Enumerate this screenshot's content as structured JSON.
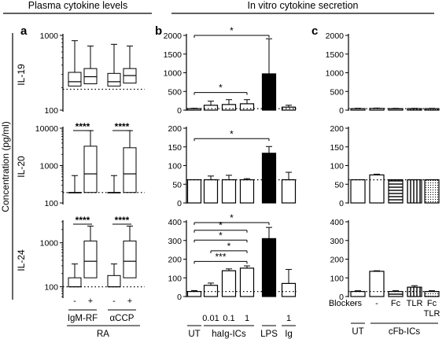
{
  "header": {
    "left_title": "Plasma cytokine levels",
    "right_title": "In vitro cytokine secretion"
  },
  "panel_letters": [
    "a",
    "b",
    "c"
  ],
  "y_axis_label": "Concentration (pg/ml)",
  "row_labels": [
    "IL-19",
    "IL-20",
    "IL-24"
  ],
  "colors": {
    "black": "#000000",
    "white": "#ffffff",
    "hatch": "#000000"
  },
  "chart_data": [
    {
      "panel": "a",
      "type": "box",
      "scale": "log",
      "groups": [
        {
          "name": "IgM-RF",
          "categories": [
            "-",
            "+"
          ]
        },
        {
          "name": "αCCP",
          "categories": [
            "-",
            "+"
          ]
        }
      ],
      "group_label": "RA",
      "rows": [
        {
          "row": "IL-19",
          "y_ticks": [
            100,
            1000
          ],
          "y_tick_labels": [
            "100",
            "1000"
          ],
          "ylim": [
            100,
            1000
          ],
          "reference_line": 190,
          "boxes": [
            {
              "category": "-",
              "group": "IgM-RF",
              "fill": "white",
              "min": 190,
              "q1": 210,
              "median": 240,
              "q3": 320,
              "max": 850
            },
            {
              "category": "+",
              "group": "IgM-RF",
              "fill": "hatched",
              "min": 190,
              "q1": 225,
              "median": 280,
              "q3": 360,
              "max": 720
            },
            {
              "category": "-",
              "group": "αCCP",
              "fill": "white",
              "min": 190,
              "q1": 210,
              "median": 240,
              "q3": 310,
              "max": 760
            },
            {
              "category": "+",
              "group": "αCCP",
              "fill": "hatched",
              "min": 190,
              "q1": 230,
              "median": 290,
              "q3": 360,
              "max": 720
            }
          ],
          "significance": []
        },
        {
          "row": "IL-20",
          "y_ticks": [
            100,
            1000,
            10000
          ],
          "y_tick_labels": [
            "100",
            "1000",
            "10000"
          ],
          "ylim": [
            100,
            10000
          ],
          "reference_line": 190,
          "boxes": [
            {
              "category": "-",
              "group": "IgM-RF",
              "fill": "white",
              "min": 190,
              "q1": 190,
              "median": 190,
              "q3": 190,
              "max": 540
            },
            {
              "category": "+",
              "group": "IgM-RF",
              "fill": "hatched",
              "min": 190,
              "q1": 190,
              "median": 600,
              "q3": 3300,
              "max": 8600
            },
            {
              "category": "-",
              "group": "αCCP",
              "fill": "white",
              "min": 190,
              "q1": 190,
              "median": 190,
              "q3": 190,
              "max": 540
            },
            {
              "category": "+",
              "group": "αCCP",
              "fill": "hatched",
              "min": 190,
              "q1": 190,
              "median": 600,
              "q3": 3000,
              "max": 8600
            }
          ],
          "significance": [
            {
              "label": "****",
              "group": "IgM-RF"
            },
            {
              "label": "****",
              "group": "αCCP"
            }
          ]
        },
        {
          "row": "IL-24",
          "y_ticks": [
            100,
            1000
          ],
          "y_tick_labels": [
            "100",
            "1000"
          ],
          "ylim": [
            60,
            3000
          ],
          "reference_line": 100,
          "boxes": [
            {
              "category": "-",
              "group": "IgM-RF",
              "fill": "white",
              "min": 100,
              "q1": 100,
              "median": 100,
              "q3": 160,
              "max": 330
            },
            {
              "category": "+",
              "group": "IgM-RF",
              "fill": "hatched",
              "min": 100,
              "q1": 160,
              "median": 380,
              "q3": 1100,
              "max": 2400
            },
            {
              "category": "-",
              "group": "αCCP",
              "fill": "white",
              "min": 100,
              "q1": 100,
              "median": 100,
              "q3": 180,
              "max": 330
            },
            {
              "category": "+",
              "group": "αCCP",
              "fill": "hatched",
              "min": 100,
              "q1": 160,
              "median": 380,
              "q3": 1100,
              "max": 2400
            }
          ],
          "significance": [
            {
              "label": "****",
              "group": "IgM-RF"
            },
            {
              "label": "****",
              "group": "αCCP"
            }
          ]
        }
      ]
    },
    {
      "panel": "b",
      "type": "bar",
      "scale": "linear",
      "categories": [
        "UT",
        "0.01",
        "0.1",
        "1",
        "LPS",
        "1"
      ],
      "fills": [
        "white",
        "hatched",
        "hatched",
        "hatched",
        "black",
        "white"
      ],
      "x_group_labels": [
        {
          "label": "UT",
          "categories": [
            0
          ]
        },
        {
          "label": "haIg-ICs",
          "categories": [
            1,
            2,
            3
          ]
        },
        {
          "label": "LPS",
          "categories": [
            4
          ]
        },
        {
          "label": "Ig",
          "categories": [
            5
          ]
        }
      ],
      "rows": [
        {
          "row": "IL-19",
          "ylim": [
            0,
            2000
          ],
          "y_ticks": [
            0,
            500,
            1000,
            1500,
            2000
          ],
          "y_tick_labels": [
            "0",
            "500",
            "1000",
            "1500",
            "2000"
          ],
          "reference_line": 40,
          "values": [
            40,
            130,
            150,
            170,
            970,
            80
          ],
          "errors": [
            10,
            110,
            130,
            110,
            940,
            50
          ],
          "significance": [
            {
              "label": "*",
              "from": 0,
              "to": 4,
              "y": 2000
            },
            {
              "label": "*",
              "from": 0,
              "to": 3,
              "y": 470
            }
          ]
        },
        {
          "row": "IL-20",
          "ylim": [
            0,
            200
          ],
          "y_ticks": [
            0,
            50,
            100,
            150,
            200
          ],
          "y_tick_labels": [
            "0",
            "50",
            "100",
            "150",
            "200"
          ],
          "reference_line": 62,
          "values": [
            62,
            62,
            62,
            62,
            133,
            62
          ],
          "errors": [
            0,
            10,
            12,
            3,
            18,
            20
          ],
          "significance": [
            {
              "label": "*",
              "from": 0,
              "to": 4,
              "y": 172
            }
          ]
        },
        {
          "row": "IL-24",
          "ylim": [
            0,
            400
          ],
          "y_ticks": [
            0,
            100,
            200,
            300,
            400
          ],
          "y_tick_labels": [
            "0",
            "100",
            "200",
            "300",
            "400"
          ],
          "reference_line": 27,
          "values": [
            27,
            60,
            138,
            152,
            310,
            70
          ],
          "errors": [
            5,
            12,
            10,
            12,
            60,
            75
          ],
          "significance": [
            {
              "label": "*",
              "from": 0,
              "to": 4,
              "y": 396
            },
            {
              "label": "*",
              "from": 0,
              "to": 3,
              "y": 355
            },
            {
              "label": "*",
              "from": 0,
              "to": 3,
              "y": 302
            },
            {
              "label": "*",
              "from": 1,
              "to": 3,
              "y": 245
            },
            {
              "label": "***",
              "from": 0,
              "to": 3,
              "y": 188
            }
          ]
        }
      ]
    },
    {
      "panel": "c",
      "type": "bar",
      "scale": "linear",
      "categories": [
        "-",
        "-",
        "Fc",
        "TLR",
        "Fc TLR"
      ],
      "fills": [
        "white",
        "hatched",
        "hlines",
        "vlines",
        "dotted"
      ],
      "blockers_label": "Blockers",
      "x_group_labels": [
        {
          "label": "UT",
          "categories": [
            0
          ]
        },
        {
          "label": "cFb-ICs",
          "categories": [
            1,
            2,
            3,
            4
          ]
        }
      ],
      "rows": [
        {
          "row": "IL-19",
          "ylim": [
            0,
            2000
          ],
          "y_ticks": [
            0,
            500,
            1000,
            1500,
            2000
          ],
          "y_tick_labels": [
            "0",
            "500",
            "1000",
            "1500",
            "2000"
          ],
          "reference_line": 40,
          "values": [
            40,
            45,
            40,
            40,
            40
          ],
          "errors": [
            10,
            10,
            8,
            8,
            8
          ],
          "significance": []
        },
        {
          "row": "IL-20",
          "ylim": [
            0,
            200
          ],
          "y_ticks": [
            0,
            50,
            100,
            150,
            200
          ],
          "y_tick_labels": [
            "0",
            "50",
            "100",
            "150",
            "200"
          ],
          "reference_line": 62,
          "values": [
            62,
            75,
            62,
            62,
            62
          ],
          "errors": [
            0,
            2,
            0,
            0,
            0
          ],
          "significance": []
        },
        {
          "row": "IL-24",
          "ylim": [
            0,
            400
          ],
          "y_ticks": [
            0,
            100,
            200,
            300,
            400
          ],
          "y_tick_labels": [
            "0",
            "100",
            "200",
            "300",
            "400"
          ],
          "reference_line": 27,
          "values": [
            27,
            135,
            27,
            50,
            27
          ],
          "errors": [
            4,
            3,
            4,
            8,
            4
          ],
          "significance": []
        }
      ]
    }
  ]
}
